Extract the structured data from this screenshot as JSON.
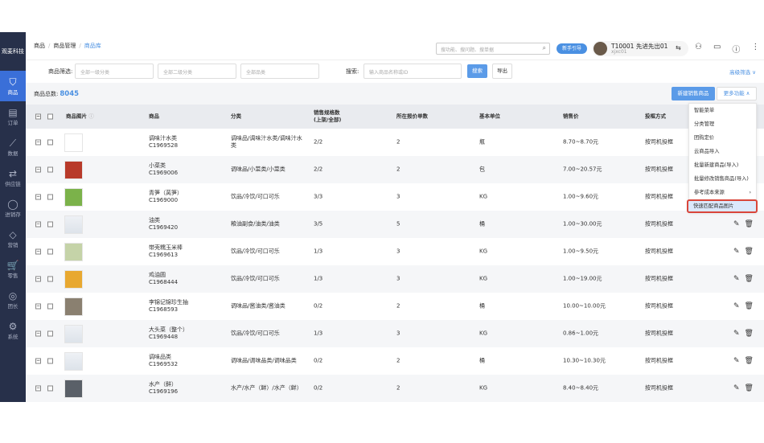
{
  "sidebar": {
    "logo": "观麦科技",
    "items": [
      {
        "label": "商品",
        "icon": "bag-icon",
        "active": true
      },
      {
        "label": "订单",
        "icon": "order-icon"
      },
      {
        "label": "数据",
        "icon": "chart-icon"
      },
      {
        "label": "供应链",
        "icon": "sync-icon"
      },
      {
        "label": "进销存",
        "icon": "network-icon"
      },
      {
        "label": "营销",
        "icon": "tag-icon"
      },
      {
        "label": "零售",
        "icon": "cart-icon"
      },
      {
        "label": "团长",
        "icon": "user-icon"
      },
      {
        "label": "系统",
        "icon": "gear-icon"
      }
    ]
  },
  "breadcrumb": [
    "商品",
    "商品管理",
    "商品库"
  ],
  "topbar": {
    "search_placeholder": "搜功能、搜问题、搜单据",
    "guide": "新手引导",
    "user_name": "T10001 先进先出01",
    "user_id": "xjxc01"
  },
  "filters": {
    "label": "商品筛选:",
    "cat1": "全部一级分类",
    "cat2": "全部二级分类",
    "cat3": "全部品类",
    "search_label": "搜索:",
    "search_placeholder": "输入商品名称或ID",
    "search_btn": "搜索",
    "export_btn": "导出",
    "advanced": "高级筛选"
  },
  "summary": {
    "label": "商品总数:",
    "count": "8045",
    "new_btn": "新建销售商品",
    "more_btn": "更多功能"
  },
  "menu": [
    "智能菜单",
    "分类管理",
    "团购定价",
    "云商品导入",
    "批量新建商品(导入)",
    "批量修改销售商品(导入)",
    "参考成本来源",
    "快速匹配商品图片"
  ],
  "columns": [
    "商品图片",
    "商品",
    "分类",
    "销售规格数\n(上架/全部)",
    "所在报价单数",
    "基本单位",
    "销售价",
    "投框方式"
  ],
  "rows": [
    {
      "name": "调味汁水类",
      "id": "C1969528",
      "cat": "调味品/调味汁水类/调味汁水类",
      "spec": "2/2",
      "quotes": "2",
      "unit": "瓶",
      "price": "8.70~8.70元",
      "mode": "按司机投框",
      "img": "#fff"
    },
    {
      "name": "小菜类",
      "id": "C1969006",
      "cat": "调味品/小菜类/小菜类",
      "spec": "2/2",
      "quotes": "2",
      "unit": "包",
      "price": "7.00~20.57元",
      "mode": "按司机投框",
      "img": "#b83a2a"
    },
    {
      "name": "青笋（莴笋）",
      "id": "C1969000",
      "cat": "饮品/冷饮/可口可乐",
      "spec": "3/3",
      "quotes": "3",
      "unit": "KG",
      "price": "1.00~9.60元",
      "mode": "按司机投框",
      "img": "#7bb24a"
    },
    {
      "name": "油类",
      "id": "C1969420",
      "cat": "粮油副食/油类/油类",
      "spec": "3/5",
      "quotes": "5",
      "unit": "桶",
      "price": "1.00~30.00元",
      "mode": "按司机投框",
      "img": ""
    },
    {
      "name": "带壳糯玉米棒",
      "id": "C1969613",
      "cat": "饮品/冷饮/可口可乐",
      "spec": "1/3",
      "quotes": "3",
      "unit": "KG",
      "price": "1.00~9.50元",
      "mode": "按司机投框",
      "img": "#c5d3a8"
    },
    {
      "name": "鸡油圆",
      "id": "C1968444",
      "cat": "饮品/冷饮/可口可乐",
      "spec": "1/3",
      "quotes": "3",
      "unit": "KG",
      "price": "1.00~19.00元",
      "mode": "按司机投框",
      "img": "#e8a830"
    },
    {
      "name": "李锦记锦珍生抽",
      "id": "C1968593",
      "cat": "调味品/酱油类/酱油类",
      "spec": "0/2",
      "quotes": "2",
      "unit": "桶",
      "price": "10.00~10.00元",
      "mode": "按司机投框",
      "img": "#8a8070"
    },
    {
      "name": "大头菜（整个）",
      "id": "C1969448",
      "cat": "饮品/冷饮/可口可乐",
      "spec": "1/3",
      "quotes": "3",
      "unit": "KG",
      "price": "0.86~1.00元",
      "mode": "按司机投框",
      "img": ""
    },
    {
      "name": "调味品类",
      "id": "C1969532",
      "cat": "调味品/调味品类/调味品类",
      "spec": "0/2",
      "quotes": "2",
      "unit": "桶",
      "price": "10.30~10.30元",
      "mode": "按司机投框",
      "img": ""
    },
    {
      "name": "水产（鲜）",
      "id": "C1969196",
      "cat": "水产/水产（鲜）/水产（鲜）",
      "spec": "0/2",
      "quotes": "2",
      "unit": "KG",
      "price": "8.40~8.40元",
      "mode": "按司机投框",
      "img": "#5a6068"
    }
  ],
  "colors": {
    "sidebar": "#27304a",
    "accent": "#4a90e2",
    "highlight_border": "#d9463a"
  }
}
